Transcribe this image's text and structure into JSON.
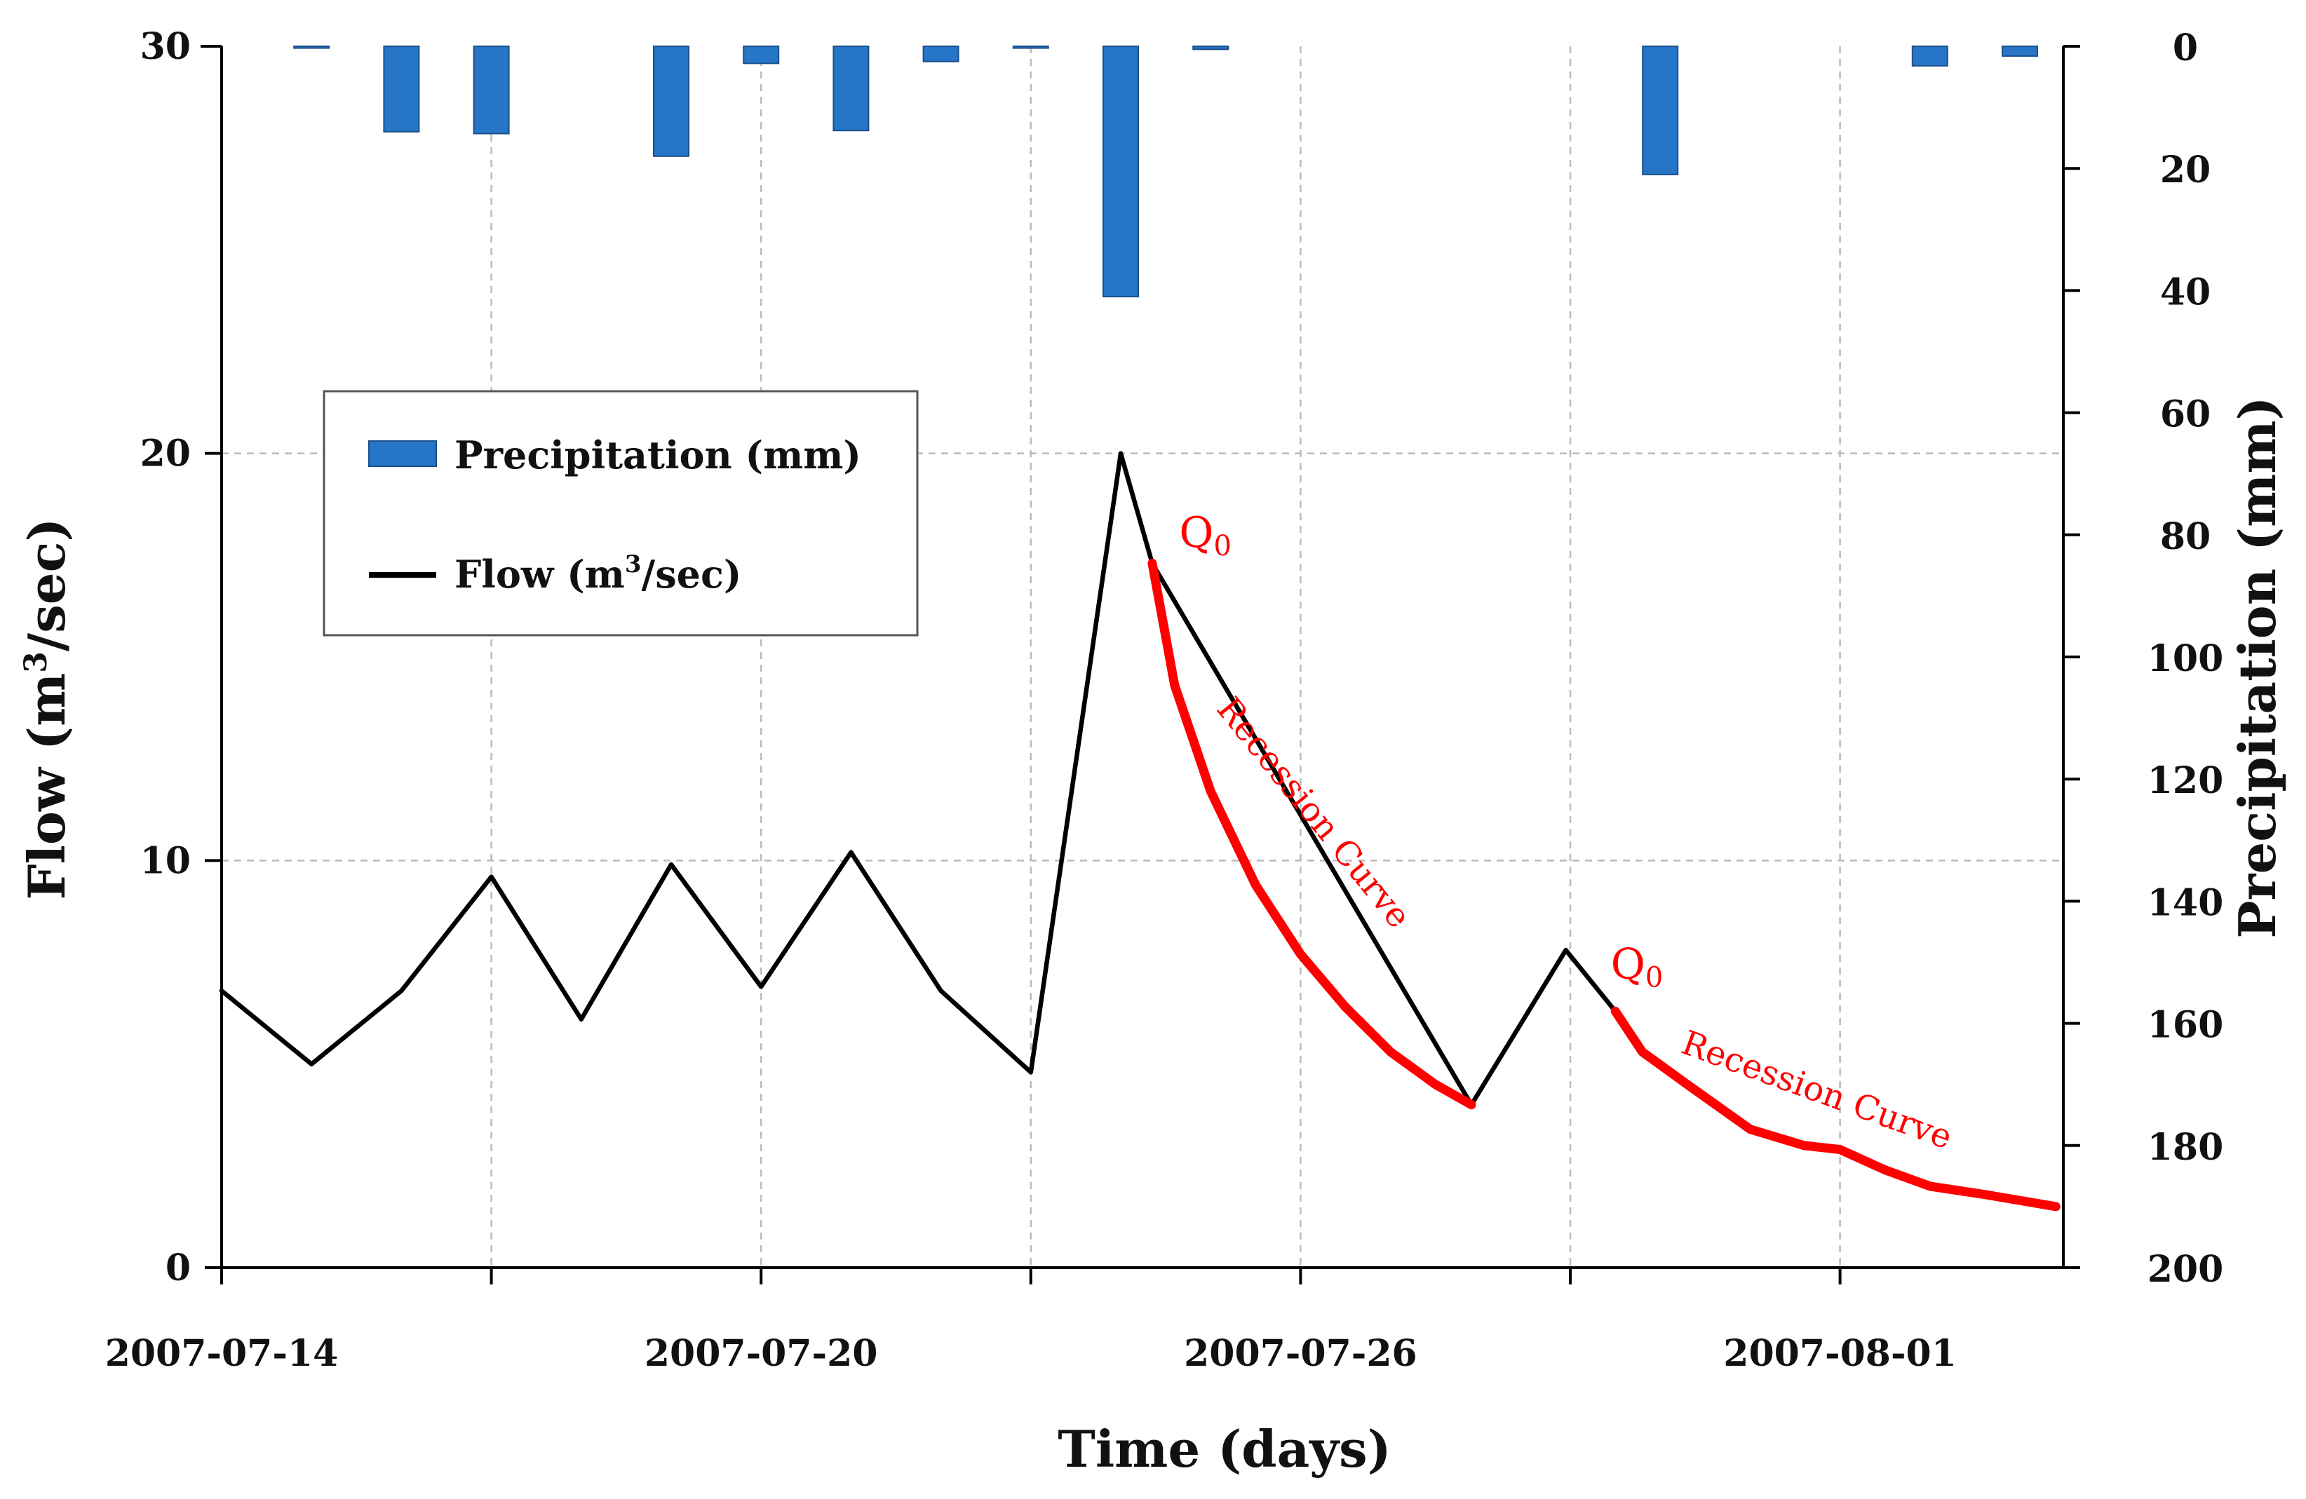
{
  "chart_data": {
    "type": "bar+line",
    "title": "",
    "xlabel": "Time (days)",
    "ylabel_left_prefix": "Flow (m",
    "ylabel_left_sup": "3",
    "ylabel_left_suffix": "/sec)",
    "ylabel_right": "Precipitation (mm)",
    "x_dates": [
      "2007-07-14",
      "2007-07-15",
      "2007-07-16",
      "2007-07-17",
      "2007-07-18",
      "2007-07-19",
      "2007-07-20",
      "2007-07-21",
      "2007-07-22",
      "2007-07-23",
      "2007-07-24",
      "2007-07-25",
      "2007-07-26",
      "2007-07-27",
      "2007-07-28",
      "2007-07-29",
      "2007-07-30",
      "2007-07-31",
      "2007-08-01",
      "2007-08-02",
      "2007-08-03"
    ],
    "x_ticks": [
      "2007-07-14",
      "2007-07-17",
      "2007-07-20",
      "2007-07-23",
      "2007-07-26",
      "2007-07-29",
      "2007-08-01"
    ],
    "x_tick_labels": [
      "2007-07-14",
      "2007-07-20",
      "2007-07-26",
      "2007-08-01"
    ],
    "x_range_days": [
      0,
      20.6
    ],
    "ylim_left": [
      0,
      30
    ],
    "yticks_left": [
      "0",
      "10",
      "20",
      "30"
    ],
    "ylim_right": [
      0,
      200
    ],
    "yticks_right": [
      "0",
      "20",
      "40",
      "60",
      "80",
      "100",
      "120",
      "140",
      "160",
      "180",
      "200"
    ],
    "grid": true,
    "legend": {
      "position": "upper-left",
      "precip_label": "Precipitation (mm)",
      "flow_prefix": "Flow (m",
      "flow_sup": "3",
      "flow_suffix": "/sec)"
    },
    "series": [
      {
        "name": "Precipitation (mm)",
        "kind": "bar",
        "axis": "right",
        "color": "#2675c7",
        "points": [
          [
            1,
            0.3
          ],
          [
            2,
            14
          ],
          [
            3,
            14.3
          ],
          [
            5,
            18
          ],
          [
            6,
            2.8
          ],
          [
            7,
            13.8
          ],
          [
            8,
            2.5
          ],
          [
            9,
            0.3
          ],
          [
            10,
            41
          ],
          [
            11,
            0.5
          ],
          [
            16,
            21
          ],
          [
            19,
            3.2
          ],
          [
            20,
            1.6
          ]
        ]
      },
      {
        "name": "Flow (m3/sec)",
        "kind": "line",
        "axis": "left",
        "color": "#000000",
        "points": [
          [
            0,
            6.8
          ],
          [
            1,
            5.0
          ],
          [
            2,
            6.8
          ],
          [
            3,
            9.6
          ],
          [
            4,
            6.1
          ],
          [
            5,
            9.9
          ],
          [
            6,
            6.9
          ],
          [
            7,
            10.2
          ],
          [
            8,
            6.8
          ],
          [
            9,
            4.8
          ],
          [
            10,
            20.0
          ],
          [
            10.35,
            17.3
          ],
          [
            13.9,
            4.0
          ],
          [
            14.95,
            7.8
          ],
          [
            15.5,
            6.3
          ]
        ]
      },
      {
        "name": "Recession Curve 1",
        "kind": "line",
        "axis": "left",
        "color": "#ff0000",
        "points": [
          [
            10.35,
            17.3
          ],
          [
            10.6,
            14.3
          ],
          [
            11,
            11.7
          ],
          [
            11.5,
            9.4
          ],
          [
            12,
            7.7
          ],
          [
            12.5,
            6.4
          ],
          [
            13,
            5.3
          ],
          [
            13.5,
            4.5
          ],
          [
            13.9,
            4.0
          ]
        ]
      },
      {
        "name": "Recession Curve 2",
        "kind": "line",
        "axis": "left",
        "color": "#ff0000",
        "points": [
          [
            15.5,
            6.3
          ],
          [
            15.8,
            5.3
          ],
          [
            16.3,
            4.5
          ],
          [
            17,
            3.4
          ],
          [
            17.6,
            3.0
          ],
          [
            18,
            2.9
          ],
          [
            18.5,
            2.4
          ],
          [
            19,
            2.0
          ],
          [
            19.6,
            1.8
          ],
          [
            20.4,
            1.5
          ]
        ]
      }
    ],
    "annotations": [
      {
        "id": "q0a",
        "q": "Q",
        "sub": "0",
        "x": 10.65,
        "y": 17.7
      },
      {
        "id": "rc1",
        "text": "Recession Curve",
        "x": 12.05,
        "y": 11.0,
        "angle": 51
      },
      {
        "id": "q0b",
        "q": "Q",
        "sub": "0",
        "x": 15.45,
        "y": 7.1
      },
      {
        "id": "rc2",
        "text": "Recession Curve",
        "x": 17.7,
        "y": 4.1,
        "angle": 20
      }
    ]
  }
}
